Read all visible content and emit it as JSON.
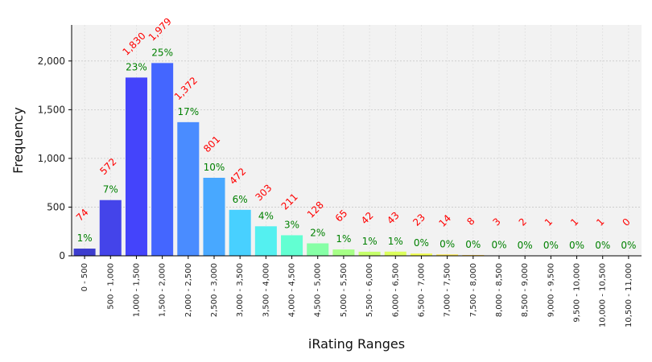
{
  "chart_data": {
    "type": "bar",
    "xlabel": "iRating Ranges",
    "ylabel": "Frequency",
    "ylim": [
      0,
      2370
    ],
    "yticks": [
      0,
      500,
      1000,
      1500,
      2000
    ],
    "ytick_labels": [
      "0",
      "500",
      "1,000",
      "1,500",
      "2,000"
    ],
    "grid": true,
    "categories": [
      "0 - 500",
      "500 - 1,000",
      "1,000 - 1,500",
      "1,500 - 2,000",
      "2,000 - 2,500",
      "2,500 - 3,000",
      "3,000 - 3,500",
      "3,500 - 4,000",
      "4,000 - 4,500",
      "4,500 - 5,000",
      "5,000 - 5,500",
      "5,500 - 6,000",
      "6,000 - 6,500",
      "6,500 - 7,000",
      "7,000 - 7,500",
      "7,500 - 8,000",
      "8,000 - 8,500",
      "8,500 - 9,000",
      "9,000 - 9,500",
      "9,500 - 10,000",
      "10,000 - 10,500",
      "10,500 - 11,000"
    ],
    "values": [
      74,
      572,
      1830,
      1979,
      1372,
      801,
      472,
      303,
      211,
      128,
      65,
      42,
      43,
      23,
      14,
      8,
      3,
      2,
      1,
      1,
      1,
      0
    ],
    "value_labels": [
      "74",
      "572",
      "1,830",
      "1,979",
      "1,372",
      "801",
      "472",
      "303",
      "211",
      "128",
      "65",
      "42",
      "43",
      "23",
      "14",
      "8",
      "3",
      "2",
      "1",
      "1",
      "1",
      "0"
    ],
    "percent_labels": [
      "1%",
      "7%",
      "23%",
      "25%",
      "17%",
      "10%",
      "6%",
      "4%",
      "3%",
      "2%",
      "1%",
      "1%",
      "1%",
      "0%",
      "0%",
      "0%",
      "0%",
      "0%",
      "0%",
      "0%",
      "0%",
      "0%"
    ],
    "colors": [
      "#3d3dcf",
      "#4444ea",
      "#4444fb",
      "#4466ff",
      "#4a8cff",
      "#48a8ff",
      "#48d0ff",
      "#54f0f0",
      "#62ffd2",
      "#86ffa6",
      "#a6ff86",
      "#c6ff6a",
      "#dcff5c",
      "#f2ff50",
      "#ffe846",
      "#ffd042",
      "#ffb43a",
      "#ff9430",
      "#ff7428",
      "#ff5a20",
      "#f03818",
      "#d02010"
    ],
    "value_label_color": "#ff0000",
    "percent_label_color": "#008000",
    "plot_background": "#f2f2f2"
  }
}
